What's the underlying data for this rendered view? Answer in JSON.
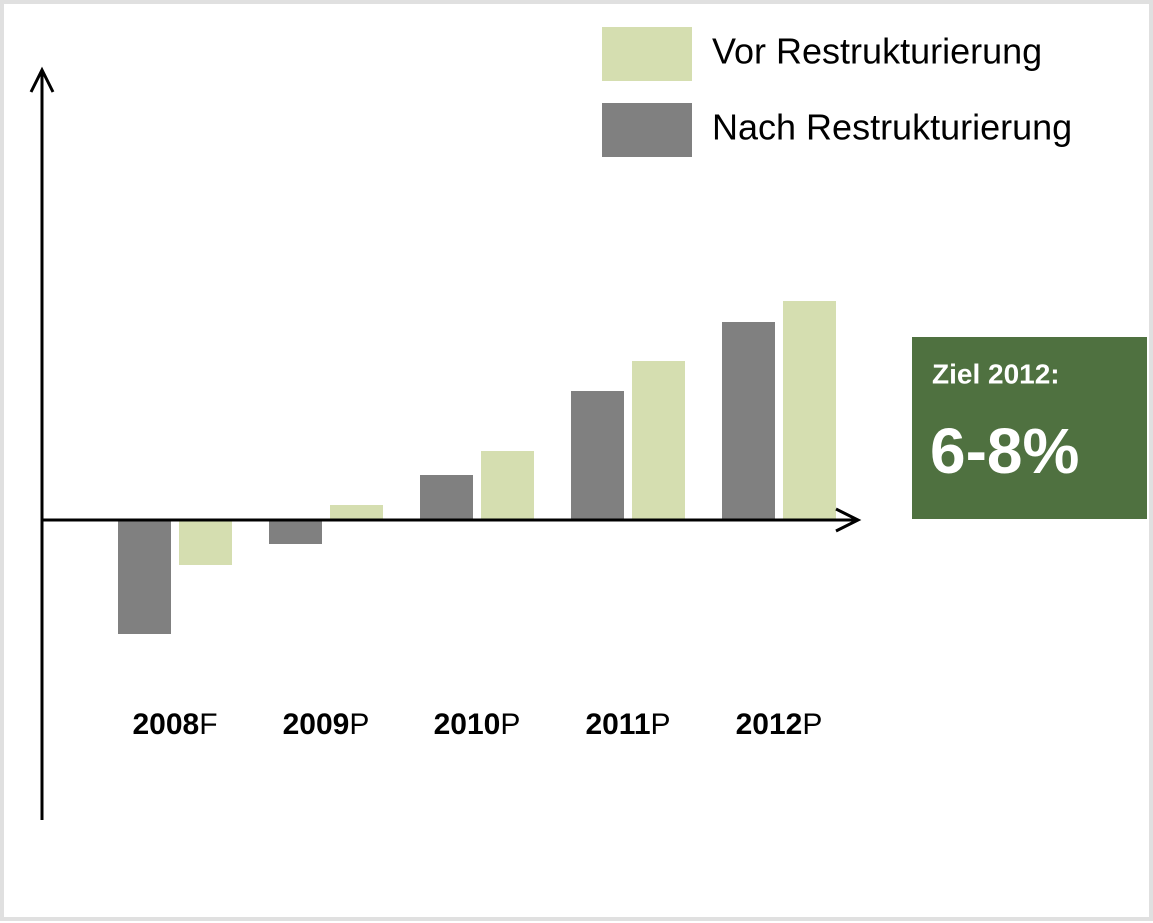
{
  "chart_data": {
    "type": "bar",
    "categories": [
      "2008F",
      "2009P",
      "2010P",
      "2011P",
      "2012P"
    ],
    "series": [
      {
        "name": "Vor Restrukturierung",
        "color": "#d5deb0",
        "values": [
          -1.5,
          0.5,
          2.3,
          5.3,
          7.3
        ]
      },
      {
        "name": "Nach Restrukturierung",
        "color": "#808080",
        "values": [
          -3.8,
          -0.8,
          1.5,
          4.3,
          6.6
        ]
      }
    ],
    "ylim": [
      -10,
      15
    ],
    "annotations": [
      "Ziel 2012:",
      "6-8%"
    ],
    "annotation_color": "#4f7140"
  }
}
